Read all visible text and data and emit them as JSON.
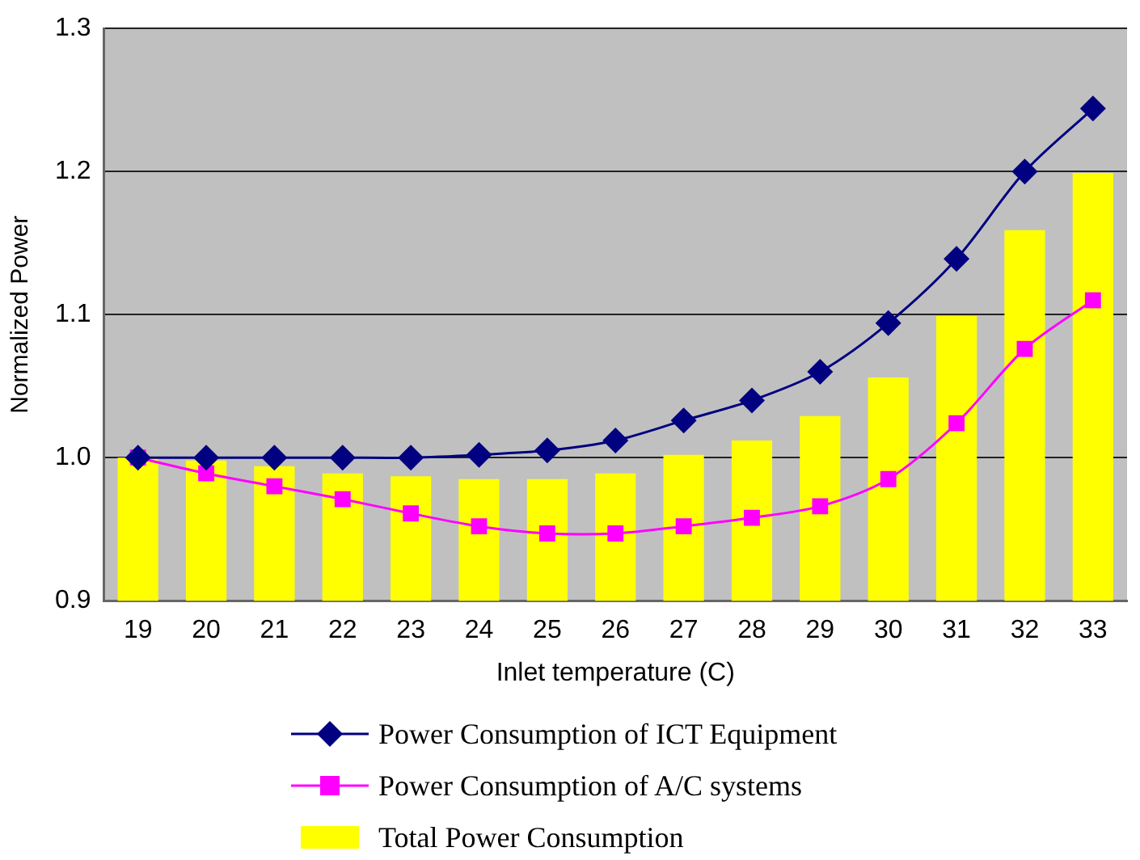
{
  "chart_data": {
    "type": "bar",
    "xlabel": "Inlet temperature (C)",
    "ylabel": "Normalized Power",
    "categories": [
      "19",
      "20",
      "21",
      "22",
      "23",
      "24",
      "25",
      "26",
      "27",
      "28",
      "29",
      "30",
      "31",
      "32",
      "33"
    ],
    "ylim": [
      0.9,
      1.3
    ],
    "yticks": [
      {
        "value": 0.9,
        "label": "0.9"
      },
      {
        "value": 1,
        "label": "1.0"
      },
      {
        "value": 1.1,
        "label": "1.1"
      },
      {
        "value": 1.2,
        "label": "1.2"
      },
      {
        "value": 1.3,
        "label": "1.3"
      }
    ],
    "grid": "y",
    "legend": "bottom",
    "series": [
      {
        "name": "Power Consumption of ICT Equipment",
        "type": "line",
        "marker": "diamond",
        "color": "#000080",
        "values": [
          1.0,
          1.0,
          1.0,
          1.0,
          1.0,
          1.002,
          1.005,
          1.012,
          1.026,
          1.04,
          1.06,
          1.094,
          1.139,
          1.2,
          1.244
        ]
      },
      {
        "name": "Power Consumption of A/C systems",
        "type": "line",
        "marker": "square",
        "color": "#ff00ff",
        "values": [
          1.0,
          0.989,
          0.98,
          0.971,
          0.961,
          0.952,
          0.947,
          0.947,
          0.952,
          0.958,
          0.966,
          0.985,
          1.024,
          1.076,
          1.11
        ]
      },
      {
        "name": "Total Power Consumption",
        "color": "#ffff00",
        "values": [
          1.0,
          0.998,
          0.994,
          0.989,
          0.987,
          0.985,
          0.985,
          0.989,
          1.002,
          1.012,
          1.029,
          1.056,
          1.099,
          1.159,
          1.199
        ]
      }
    ]
  }
}
